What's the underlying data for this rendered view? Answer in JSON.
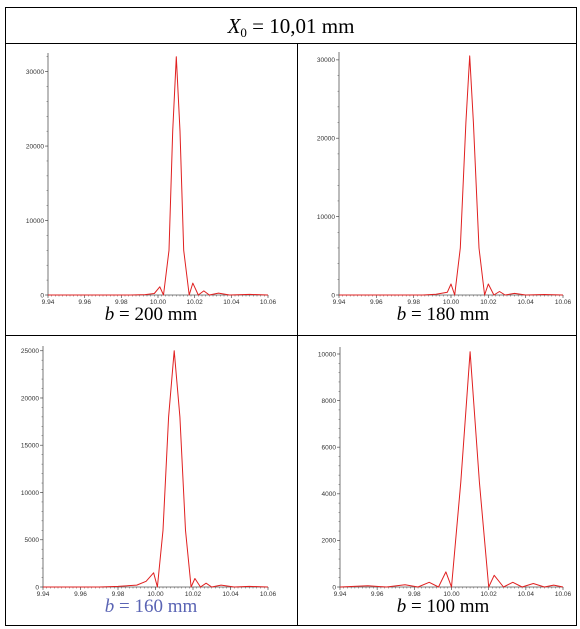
{
  "title": {
    "symbol": "X",
    "subscript": "0",
    "rest": " = 10,01 mm"
  },
  "colors": {
    "curve": "#e02020",
    "axis": "#555555",
    "caption_blue": "#5a64b4"
  },
  "panels": [
    {
      "caption_var": "b",
      "caption_rest": " = 200 mm",
      "caption_color": "#000000"
    },
    {
      "caption_var": "b",
      "caption_rest": " = 180 mm",
      "caption_color": "#000000"
    },
    {
      "caption_var": "b",
      "caption_rest": " = 160 mm",
      "caption_color": "#5a64b4"
    },
    {
      "caption_var": "b",
      "caption_rest": " = 100 mm",
      "caption_color": "#000000"
    }
  ],
  "chart_data": [
    {
      "type": "line",
      "title": "",
      "xlabel": "",
      "ylabel": "",
      "xlim": [
        9.94,
        10.06
      ],
      "ylim": [
        0,
        32500
      ],
      "x_ticks": [
        "9.94",
        "9.96",
        "9.98",
        "10.00",
        "10.02",
        "10.04",
        "10.06"
      ],
      "y_ticks": [
        "0",
        "10000",
        "20000",
        "30000"
      ],
      "y_tick_values": [
        0,
        10000,
        20000,
        30000
      ],
      "series": [
        {
          "x": [
            9.94,
            9.985,
            9.993,
            9.998,
            10.001,
            10.003,
            10.006,
            10.008,
            10.01,
            10.012,
            10.014,
            10.017,
            10.019,
            10.022,
            10.025,
            10.028,
            10.033,
            10.039,
            10.05,
            10.06
          ],
          "y": [
            0,
            0,
            60,
            200,
            1100,
            0,
            6000,
            22000,
            32000,
            22000,
            6000,
            0,
            1600,
            0,
            550,
            0,
            250,
            0,
            80,
            0
          ]
        }
      ]
    },
    {
      "type": "line",
      "title": "",
      "xlabel": "",
      "ylabel": "",
      "xlim": [
        9.94,
        10.06
      ],
      "ylim": [
        0,
        31000
      ],
      "x_ticks": [
        "9.94",
        "9.96",
        "9.98",
        "10.00",
        "10.02",
        "10.04",
        "10.06"
      ],
      "y_ticks": [
        "0",
        "10000",
        "20000",
        "30000"
      ],
      "y_tick_values": [
        0,
        10000,
        20000,
        30000
      ],
      "series": [
        {
          "x": [
            9.94,
            9.985,
            9.992,
            9.998,
            10.0,
            10.002,
            10.005,
            10.008,
            10.01,
            10.012,
            10.015,
            10.018,
            10.02,
            10.023,
            10.026,
            10.029,
            10.034,
            10.04,
            10.05,
            10.06
          ],
          "y": [
            0,
            0,
            100,
            350,
            1400,
            0,
            6000,
            22000,
            30500,
            22000,
            6000,
            0,
            1400,
            0,
            450,
            0,
            200,
            0,
            60,
            0
          ]
        }
      ]
    },
    {
      "type": "line",
      "title": "",
      "xlabel": "",
      "ylabel": "",
      "xlim": [
        9.94,
        10.06
      ],
      "ylim": [
        0,
        25500
      ],
      "x_ticks": [
        "9.94",
        "9.96",
        "9.98",
        "10.00",
        "10.02",
        "10.04",
        "10.06"
      ],
      "y_ticks": [
        "0",
        "5000",
        "10000",
        "15000",
        "20000",
        "25000"
      ],
      "y_tick_values": [
        0,
        5000,
        10000,
        15000,
        20000,
        25000
      ],
      "series": [
        {
          "x": [
            9.94,
            9.97,
            9.98,
            9.99,
            9.995,
            9.999,
            10.001,
            10.004,
            10.007,
            10.01,
            10.013,
            10.016,
            10.019,
            10.021,
            10.024,
            10.027,
            10.03,
            10.035,
            10.042,
            10.05,
            10.06
          ],
          "y": [
            0,
            0,
            60,
            200,
            600,
            1500,
            0,
            6000,
            18000,
            25000,
            18000,
            6000,
            0,
            900,
            0,
            400,
            0,
            200,
            0,
            60,
            0
          ]
        }
      ]
    },
    {
      "type": "line",
      "title": "",
      "xlabel": "",
      "ylabel": "",
      "xlim": [
        9.94,
        10.06
      ],
      "ylim": [
        0,
        10300
      ],
      "x_ticks": [
        "9.94",
        "9.96",
        "9.98",
        "10.00",
        "10.02",
        "10.04",
        "10.06"
      ],
      "y_ticks": [
        "0",
        "2000",
        "4000",
        "6000",
        "8000",
        "10000"
      ],
      "y_tick_values": [
        0,
        2000,
        4000,
        6000,
        8000,
        10000
      ],
      "series": [
        {
          "x": [
            9.94,
            9.955,
            9.965,
            9.975,
            9.982,
            9.988,
            9.993,
            9.997,
            10.0,
            10.005,
            10.01,
            10.015,
            10.02,
            10.023,
            10.028,
            10.033,
            10.038,
            10.044,
            10.05,
            10.055,
            10.06
          ],
          "y": [
            0,
            50,
            0,
            100,
            0,
            200,
            0,
            650,
            0,
            4500,
            10100,
            4500,
            0,
            500,
            0,
            200,
            0,
            150,
            0,
            80,
            0
          ]
        }
      ]
    }
  ]
}
